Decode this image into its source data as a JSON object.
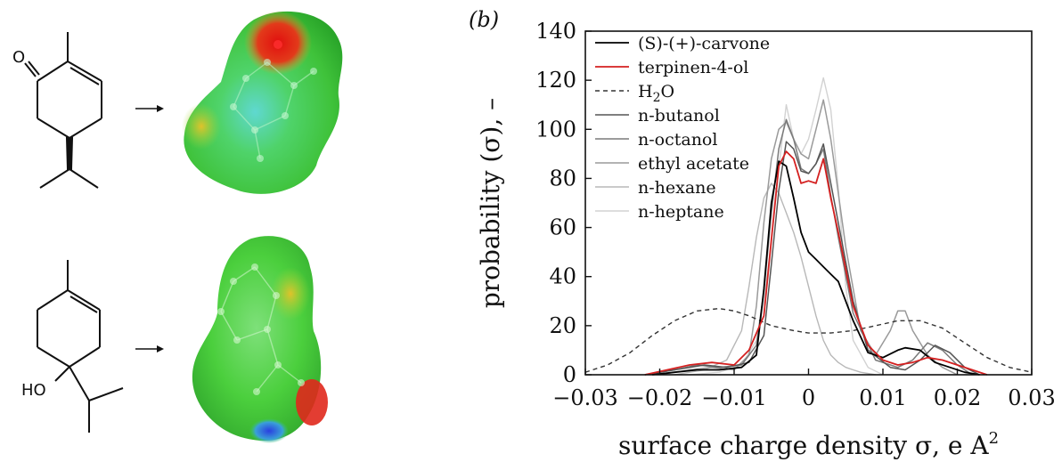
{
  "panel_label": "(b)",
  "molecules": {
    "carvone_atom_label": "O",
    "terpinenol_atom_label": "HO"
  },
  "colors": {
    "carvone": "#000000",
    "terpinenol": "#d42020",
    "water": "#333333",
    "butanol": "#555555",
    "octanol": "#7a7a7a",
    "ethyl_acetate": "#9a9a9a",
    "hexane": "#b8b8b8",
    "heptane": "#d2d2d2"
  },
  "chart_data": {
    "type": "line",
    "xlabel": "surface charge density σ, e A",
    "xlabel_superscript": "2",
    "ylabel": "probability (σ), –",
    "xlim": [
      -0.03,
      0.03
    ],
    "ylim": [
      0,
      140
    ],
    "x_ticks": [
      -0.03,
      -0.02,
      -0.01,
      0,
      0.01,
      0.02,
      0.03
    ],
    "x_tick_labels": [
      "−0.03",
      "−0.02",
      "−0.01",
      "0",
      "0.01",
      "0.02",
      "0.03"
    ],
    "y_ticks": [
      0,
      20,
      40,
      60,
      80,
      100,
      120,
      140
    ],
    "y_tick_labels": [
      "0",
      "20",
      "40",
      "60",
      "80",
      "100",
      "120",
      "140"
    ],
    "legend_position": "top-right",
    "series": [
      {
        "key": "carvone",
        "name": "(S)-(+)-carvone",
        "dash": "solid",
        "width": 1.8,
        "x": [
          -0.021,
          -0.018,
          -0.015,
          -0.012,
          -0.009,
          -0.007,
          -0.006,
          -0.005,
          -0.004,
          -0.003,
          -0.002,
          -0.001,
          0.0,
          0.001,
          0.002,
          0.003,
          0.004,
          0.006,
          0.008,
          0.01,
          0.012,
          0.013,
          0.015,
          0.017,
          0.019,
          0.021,
          0.023
        ],
        "y": [
          0,
          1,
          2,
          2,
          3,
          8,
          35,
          70,
          87,
          85,
          72,
          58,
          50,
          47,
          44,
          41,
          38,
          22,
          9,
          7,
          10,
          11,
          10,
          5,
          3,
          1,
          0
        ]
      },
      {
        "key": "terpinenol",
        "name": "terpinen-4-ol",
        "dash": "solid",
        "width": 1.8,
        "x": [
          -0.022,
          -0.019,
          -0.016,
          -0.013,
          -0.01,
          -0.008,
          -0.006,
          -0.005,
          -0.004,
          -0.003,
          -0.002,
          -0.001,
          0.0,
          0.001,
          0.002,
          0.003,
          0.004,
          0.006,
          0.008,
          0.01,
          0.012,
          0.014,
          0.016,
          0.018,
          0.02,
          0.022,
          0.024
        ],
        "y": [
          0,
          2,
          4,
          5,
          4,
          10,
          24,
          55,
          85,
          91,
          88,
          78,
          79,
          78,
          88,
          72,
          58,
          28,
          12,
          6,
          4,
          5,
          7,
          6,
          4,
          2,
          0
        ]
      },
      {
        "key": "water",
        "name": "H",
        "name_sub": "2",
        "name_tail": "O",
        "dash": "dashed",
        "width": 1.4,
        "x": [
          -0.03,
          -0.027,
          -0.024,
          -0.021,
          -0.018,
          -0.015,
          -0.012,
          -0.01,
          -0.008,
          -0.005,
          -0.002,
          0.0,
          0.003,
          0.006,
          0.009,
          0.012,
          0.015,
          0.018,
          0.021,
          0.024,
          0.027,
          0.03
        ],
        "y": [
          1,
          4,
          9,
          16,
          22,
          26,
          27,
          26,
          24,
          20,
          18,
          17,
          17,
          18,
          20,
          22,
          22,
          19,
          13,
          7,
          3,
          1
        ]
      },
      {
        "key": "butanol",
        "name": "n-butanol",
        "dash": "solid",
        "width": 1.5,
        "x": [
          -0.022,
          -0.018,
          -0.014,
          -0.011,
          -0.008,
          -0.006,
          -0.005,
          -0.004,
          -0.003,
          -0.002,
          -0.001,
          0.0,
          0.001,
          0.002,
          0.003,
          0.004,
          0.006,
          0.008,
          0.011,
          0.013,
          0.015,
          0.017,
          0.019,
          0.021,
          0.023
        ],
        "y": [
          0,
          2,
          4,
          3,
          5,
          16,
          45,
          75,
          95,
          92,
          83,
          82,
          86,
          94,
          78,
          62,
          30,
          10,
          3,
          2,
          6,
          12,
          9,
          3,
          0
        ]
      },
      {
        "key": "octanol",
        "name": "n-octanol",
        "dash": "solid",
        "width": 1.5,
        "x": [
          -0.022,
          -0.018,
          -0.015,
          -0.012,
          -0.009,
          -0.007,
          -0.006,
          -0.005,
          -0.004,
          -0.003,
          -0.002,
          -0.001,
          0.0,
          0.001,
          0.002,
          0.003,
          0.004,
          0.006,
          0.009,
          0.012,
          0.014,
          0.016,
          0.018,
          0.02,
          0.022
        ],
        "y": [
          0,
          2,
          4,
          3,
          4,
          12,
          34,
          66,
          92,
          104,
          96,
          84,
          82,
          86,
          92,
          73,
          56,
          25,
          6,
          3,
          6,
          13,
          10,
          4,
          0
        ]
      },
      {
        "key": "ethyl_acetate",
        "name": "ethyl acetate",
        "dash": "solid",
        "width": 1.5,
        "x": [
          -0.02,
          -0.016,
          -0.013,
          -0.01,
          -0.008,
          -0.007,
          -0.006,
          -0.005,
          -0.004,
          -0.003,
          -0.002,
          -0.001,
          0.0,
          0.001,
          0.002,
          0.003,
          0.005,
          0.007,
          0.009,
          0.011,
          0.012,
          0.013,
          0.014,
          0.016,
          0.018,
          0.02
        ],
        "y": [
          0,
          2,
          3,
          2,
          8,
          28,
          62,
          88,
          100,
          103,
          96,
          90,
          88,
          100,
          112,
          96,
          52,
          18,
          8,
          18,
          26,
          26,
          18,
          8,
          3,
          0
        ]
      },
      {
        "key": "hexane",
        "name": "n-hexane",
        "dash": "solid",
        "width": 1.4,
        "x": [
          -0.018,
          -0.014,
          -0.011,
          -0.009,
          -0.008,
          -0.007,
          -0.006,
          -0.005,
          -0.004,
          -0.003,
          -0.002,
          -0.001,
          0.0,
          0.001,
          0.002,
          0.003,
          0.004,
          0.005,
          0.006,
          0.007,
          0.009
        ],
        "y": [
          0,
          2,
          6,
          18,
          36,
          56,
          72,
          78,
          74,
          66,
          58,
          48,
          36,
          24,
          14,
          8,
          5,
          3,
          2,
          1,
          0
        ]
      },
      {
        "key": "heptane",
        "name": "n-heptane",
        "dash": "solid",
        "width": 1.4,
        "x": [
          -0.016,
          -0.012,
          -0.009,
          -0.007,
          -0.006,
          -0.005,
          -0.004,
          -0.003,
          -0.002,
          -0.001,
          0.0,
          0.001,
          0.002,
          0.003,
          0.004,
          0.005,
          0.006,
          0.008,
          0.01
        ],
        "y": [
          0,
          1,
          4,
          14,
          30,
          54,
          84,
          110,
          96,
          90,
          96,
          108,
          121,
          108,
          76,
          36,
          14,
          3,
          0
        ]
      }
    ]
  }
}
